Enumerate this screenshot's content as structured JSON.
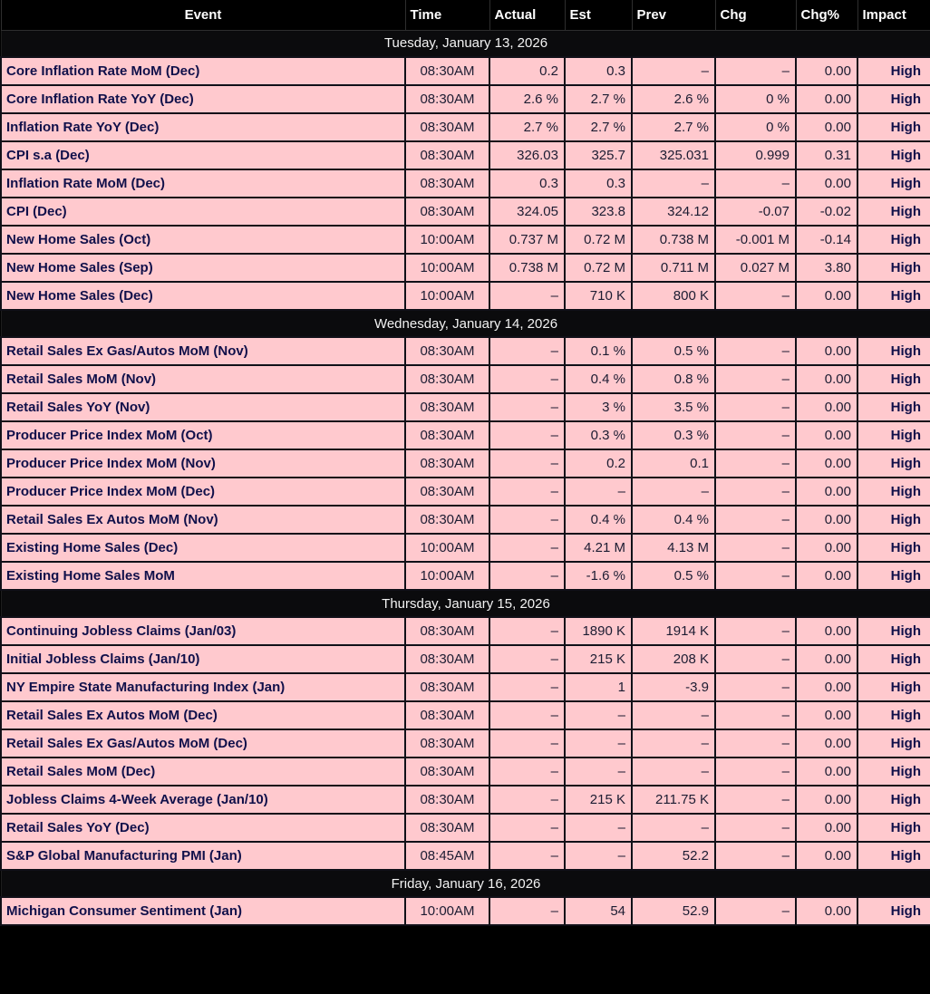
{
  "colors": {
    "header_bg": "#000000",
    "date_row_bg": "#0b0b0d",
    "row_bg": "#ffc9ce",
    "grid_line": "#101018",
    "header_text": "#ffffff",
    "date_text": "#f2f2f2",
    "event_text": "#10104a",
    "value_text": "#1c1c32"
  },
  "chart_data": {
    "type": "table",
    "columns": [
      "Event",
      "Time",
      "Actual",
      "Est",
      "Prev",
      "Chg",
      "Chg%",
      "Impact"
    ],
    "sections": [
      {
        "date": "Tuesday, January 13, 2026",
        "rows": [
          {
            "event": "Core Inflation Rate MoM (Dec)",
            "time": "08:30AM",
            "actual": "0.2",
            "est": "0.3",
            "prev": "–",
            "chg": "–",
            "chg_pct": "0.00",
            "impact": "High"
          },
          {
            "event": "Core Inflation Rate YoY (Dec)",
            "time": "08:30AM",
            "actual": "2.6 %",
            "est": "2.7 %",
            "prev": "2.6 %",
            "chg": "0 %",
            "chg_pct": "0.00",
            "impact": "High"
          },
          {
            "event": "Inflation Rate YoY (Dec)",
            "time": "08:30AM",
            "actual": "2.7 %",
            "est": "2.7 %",
            "prev": "2.7 %",
            "chg": "0 %",
            "chg_pct": "0.00",
            "impact": "High"
          },
          {
            "event": "CPI s.a (Dec)",
            "time": "08:30AM",
            "actual": "326.03",
            "est": "325.7",
            "prev": "325.031",
            "chg": "0.999",
            "chg_pct": "0.31",
            "impact": "High"
          },
          {
            "event": "Inflation Rate MoM (Dec)",
            "time": "08:30AM",
            "actual": "0.3",
            "est": "0.3",
            "prev": "–",
            "chg": "–",
            "chg_pct": "0.00",
            "impact": "High"
          },
          {
            "event": "CPI (Dec)",
            "time": "08:30AM",
            "actual": "324.05",
            "est": "323.8",
            "prev": "324.12",
            "chg": "-0.07",
            "chg_pct": "-0.02",
            "impact": "High"
          },
          {
            "event": "New Home Sales (Oct)",
            "time": "10:00AM",
            "actual": "0.737 M",
            "est": "0.72 M",
            "prev": "0.738 M",
            "chg": "-0.001 M",
            "chg_pct": "-0.14",
            "impact": "High"
          },
          {
            "event": "New Home Sales (Sep)",
            "time": "10:00AM",
            "actual": "0.738 M",
            "est": "0.72 M",
            "prev": "0.711 M",
            "chg": "0.027 M",
            "chg_pct": "3.80",
            "impact": "High"
          },
          {
            "event": "New Home Sales (Dec)",
            "time": "10:00AM",
            "actual": "–",
            "est": "710 K",
            "prev": "800 K",
            "chg": "–",
            "chg_pct": "0.00",
            "impact": "High"
          }
        ]
      },
      {
        "date": "Wednesday, January 14, 2026",
        "rows": [
          {
            "event": "Retail Sales Ex Gas/Autos MoM (Nov)",
            "time": "08:30AM",
            "actual": "–",
            "est": "0.1 %",
            "prev": "0.5 %",
            "chg": "–",
            "chg_pct": "0.00",
            "impact": "High"
          },
          {
            "event": "Retail Sales MoM (Nov)",
            "time": "08:30AM",
            "actual": "–",
            "est": "0.4 %",
            "prev": "0.8 %",
            "chg": "–",
            "chg_pct": "0.00",
            "impact": "High"
          },
          {
            "event": "Retail Sales YoY (Nov)",
            "time": "08:30AM",
            "actual": "–",
            "est": "3 %",
            "prev": "3.5 %",
            "chg": "–",
            "chg_pct": "0.00",
            "impact": "High"
          },
          {
            "event": "Producer Price Index MoM (Oct)",
            "time": "08:30AM",
            "actual": "–",
            "est": "0.3 %",
            "prev": "0.3 %",
            "chg": "–",
            "chg_pct": "0.00",
            "impact": "High"
          },
          {
            "event": "Producer Price Index MoM (Nov)",
            "time": "08:30AM",
            "actual": "–",
            "est": "0.2",
            "prev": "0.1",
            "chg": "–",
            "chg_pct": "0.00",
            "impact": "High"
          },
          {
            "event": "Producer Price Index MoM (Dec)",
            "time": "08:30AM",
            "actual": "–",
            "est": "–",
            "prev": "–",
            "chg": "–",
            "chg_pct": "0.00",
            "impact": "High"
          },
          {
            "event": "Retail Sales Ex Autos MoM (Nov)",
            "time": "08:30AM",
            "actual": "–",
            "est": "0.4 %",
            "prev": "0.4 %",
            "chg": "–",
            "chg_pct": "0.00",
            "impact": "High"
          },
          {
            "event": "Existing Home Sales (Dec)",
            "time": "10:00AM",
            "actual": "–",
            "est": "4.21 M",
            "prev": "4.13 M",
            "chg": "–",
            "chg_pct": "0.00",
            "impact": "High"
          },
          {
            "event": "Existing Home Sales MoM",
            "time": "10:00AM",
            "actual": "–",
            "est": "-1.6 %",
            "prev": "0.5 %",
            "chg": "–",
            "chg_pct": "0.00",
            "impact": "High"
          }
        ]
      },
      {
        "date": "Thursday, January 15, 2026",
        "rows": [
          {
            "event": "Continuing Jobless Claims (Jan/03)",
            "time": "08:30AM",
            "actual": "–",
            "est": "1890 K",
            "prev": "1914 K",
            "chg": "–",
            "chg_pct": "0.00",
            "impact": "High"
          },
          {
            "event": "Initial Jobless Claims (Jan/10)",
            "time": "08:30AM",
            "actual": "–",
            "est": "215 K",
            "prev": "208 K",
            "chg": "–",
            "chg_pct": "0.00",
            "impact": "High"
          },
          {
            "event": "NY Empire State Manufacturing Index (Jan)",
            "time": "08:30AM",
            "actual": "–",
            "est": "1",
            "prev": "-3.9",
            "chg": "–",
            "chg_pct": "0.00",
            "impact": "High"
          },
          {
            "event": "Retail Sales Ex Autos MoM (Dec)",
            "time": "08:30AM",
            "actual": "–",
            "est": "–",
            "prev": "–",
            "chg": "–",
            "chg_pct": "0.00",
            "impact": "High"
          },
          {
            "event": "Retail Sales Ex Gas/Autos MoM (Dec)",
            "time": "08:30AM",
            "actual": "–",
            "est": "–",
            "prev": "–",
            "chg": "–",
            "chg_pct": "0.00",
            "impact": "High"
          },
          {
            "event": "Retail Sales MoM (Dec)",
            "time": "08:30AM",
            "actual": "–",
            "est": "–",
            "prev": "–",
            "chg": "–",
            "chg_pct": "0.00",
            "impact": "High"
          },
          {
            "event": "Jobless Claims 4-Week Average (Jan/10)",
            "time": "08:30AM",
            "actual": "–",
            "est": "215 K",
            "prev": "211.75 K",
            "chg": "–",
            "chg_pct": "0.00",
            "impact": "High"
          },
          {
            "event": "Retail Sales YoY (Dec)",
            "time": "08:30AM",
            "actual": "–",
            "est": "–",
            "prev": "–",
            "chg": "–",
            "chg_pct": "0.00",
            "impact": "High"
          },
          {
            "event": "S&P Global Manufacturing PMI (Jan)",
            "time": "08:45AM",
            "actual": "–",
            "est": "–",
            "prev": "52.2",
            "chg": "–",
            "chg_pct": "0.00",
            "impact": "High"
          }
        ]
      },
      {
        "date": "Friday, January 16, 2026",
        "rows": [
          {
            "event": "Michigan Consumer Sentiment (Jan)",
            "time": "10:00AM",
            "actual": "–",
            "est": "54",
            "prev": "52.9",
            "chg": "–",
            "chg_pct": "0.00",
            "impact": "High"
          }
        ]
      }
    ]
  }
}
